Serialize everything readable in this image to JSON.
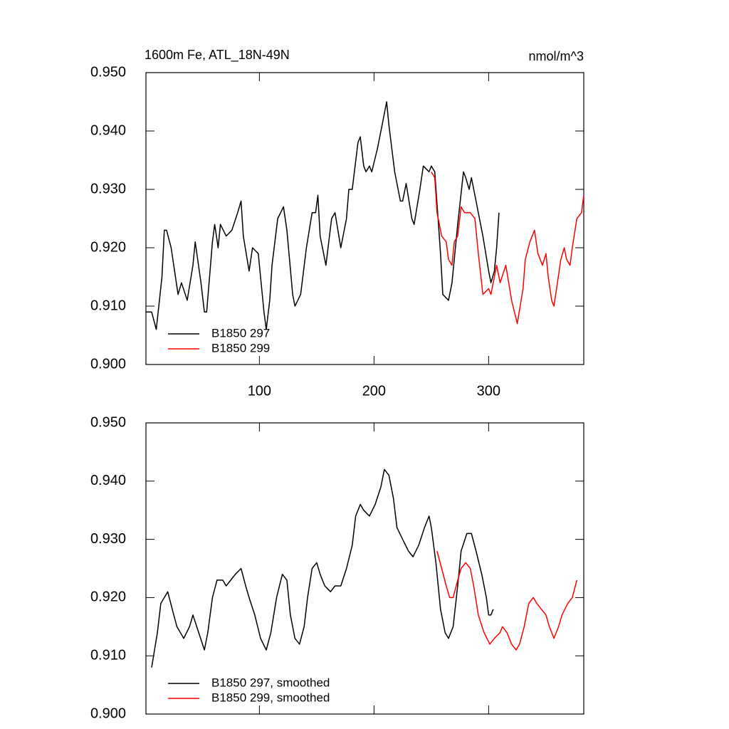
{
  "chart_data": [
    {
      "type": "line",
      "title": "1600m Fe, ATL_18N-49N",
      "units": "nmol/m^3",
      "xlim": [
        1,
        383
      ],
      "xticks": [
        100,
        200,
        300
      ],
      "show_xtick_labels": true,
      "ylim": [
        0.9,
        0.95
      ],
      "yticks": [
        {
          "value": 0.9,
          "label": "0.900"
        },
        {
          "value": 0.91,
          "label": "0.910"
        },
        {
          "value": 0.92,
          "label": "0.920"
        },
        {
          "value": 0.93,
          "label": "0.930"
        },
        {
          "value": 0.94,
          "label": "0.940"
        },
        {
          "value": 0.95,
          "label": "0.950"
        }
      ],
      "legend": "lower left",
      "series": [
        {
          "name": "B1850 297",
          "color": "#000000",
          "x": [
            1,
            6,
            10,
            15,
            17,
            19,
            23,
            29,
            32,
            37,
            42,
            44,
            49,
            52,
            54,
            59,
            61,
            64,
            66,
            71,
            76,
            81,
            84,
            86,
            91,
            94,
            99,
            104,
            106,
            109,
            111,
            116,
            121,
            124,
            129,
            131,
            136,
            141,
            146,
            149,
            151,
            153,
            158,
            163,
            166,
            171,
            176,
            178,
            181,
            186,
            188,
            191,
            193,
            196,
            198,
            203,
            208,
            211,
            213,
            218,
            223,
            225,
            228,
            233,
            235,
            240,
            243,
            248,
            250,
            253,
            258,
            260,
            265,
            268,
            273,
            278,
            280,
            283,
            285,
            290,
            295,
            300,
            302,
            305,
            307,
            309
          ],
          "values": [
            0.909,
            0.909,
            0.906,
            0.915,
            0.923,
            0.923,
            0.92,
            0.912,
            0.914,
            0.911,
            0.917,
            0.921,
            0.914,
            0.909,
            0.909,
            0.921,
            0.924,
            0.92,
            0.924,
            0.922,
            0.923,
            0.926,
            0.928,
            0.922,
            0.916,
            0.92,
            0.919,
            0.909,
            0.906,
            0.911,
            0.917,
            0.925,
            0.927,
            0.923,
            0.912,
            0.91,
            0.912,
            0.92,
            0.926,
            0.926,
            0.929,
            0.922,
            0.917,
            0.925,
            0.926,
            0.92,
            0.925,
            0.93,
            0.93,
            0.938,
            0.939,
            0.934,
            0.933,
            0.934,
            0.933,
            0.937,
            0.942,
            0.945,
            0.941,
            0.933,
            0.928,
            0.928,
            0.931,
            0.925,
            0.924,
            0.93,
            0.934,
            0.933,
            0.934,
            0.933,
            0.919,
            0.912,
            0.911,
            0.914,
            0.924,
            0.933,
            0.932,
            0.93,
            0.932,
            0.927,
            0.922,
            0.916,
            0.914,
            0.916,
            0.92,
            0.926
          ]
        },
        {
          "name": "B1850 299",
          "color": "#ff0000",
          "x": [
            250,
            253,
            255,
            259,
            263,
            265,
            268,
            270,
            273,
            276,
            279,
            284,
            288,
            291,
            295,
            300,
            302,
            307,
            310,
            315,
            320,
            325,
            330,
            332,
            336,
            340,
            343,
            347,
            350,
            352,
            355,
            357,
            360,
            363,
            366,
            368,
            371,
            373,
            377,
            381,
            383
          ],
          "values": [
            0.933,
            0.932,
            0.926,
            0.922,
            0.921,
            0.918,
            0.917,
            0.921,
            0.922,
            0.927,
            0.926,
            0.926,
            0.925,
            0.919,
            0.912,
            0.913,
            0.912,
            0.917,
            0.914,
            0.917,
            0.911,
            0.907,
            0.913,
            0.918,
            0.921,
            0.923,
            0.919,
            0.917,
            0.919,
            0.915,
            0.911,
            0.91,
            0.914,
            0.918,
            0.92,
            0.918,
            0.917,
            0.92,
            0.925,
            0.926,
            0.929
          ]
        }
      ]
    },
    {
      "type": "line",
      "xlim": [
        1,
        383
      ],
      "xticks": [
        100,
        200,
        300
      ],
      "show_xtick_labels": false,
      "ylim": [
        0.9,
        0.95
      ],
      "yticks": [
        {
          "value": 0.9,
          "label": "0.900"
        },
        {
          "value": 0.91,
          "label": "0.910"
        },
        {
          "value": 0.92,
          "label": "0.920"
        },
        {
          "value": 0.93,
          "label": "0.930"
        },
        {
          "value": 0.94,
          "label": "0.940"
        },
        {
          "value": 0.95,
          "label": "0.950"
        }
      ],
      "legend": "lower left",
      "series": [
        {
          "name": "B1850 297, smoothed",
          "color": "#000000",
          "x": [
            6,
            11,
            14,
            20,
            24,
            28,
            34,
            39,
            42,
            47,
            52,
            55,
            59,
            63,
            68,
            71,
            75,
            79,
            84,
            88,
            91,
            96,
            101,
            106,
            110,
            115,
            120,
            124,
            127,
            131,
            135,
            139,
            142,
            146,
            150,
            153,
            157,
            162,
            166,
            171,
            176,
            181,
            184,
            188,
            191,
            196,
            201,
            206,
            209,
            213,
            217,
            220,
            225,
            230,
            234,
            239,
            244,
            248,
            250,
            254,
            258,
            262,
            265,
            269,
            273,
            276,
            281,
            285,
            289,
            294,
            298,
            300,
            302,
            304
          ],
          "values": [
            0.908,
            0.914,
            0.919,
            0.921,
            0.918,
            0.915,
            0.913,
            0.915,
            0.917,
            0.914,
            0.911,
            0.914,
            0.92,
            0.923,
            0.923,
            0.922,
            0.923,
            0.924,
            0.925,
            0.922,
            0.92,
            0.917,
            0.913,
            0.911,
            0.914,
            0.92,
            0.924,
            0.923,
            0.917,
            0.913,
            0.912,
            0.915,
            0.92,
            0.925,
            0.926,
            0.924,
            0.922,
            0.921,
            0.922,
            0.922,
            0.925,
            0.929,
            0.934,
            0.936,
            0.935,
            0.934,
            0.936,
            0.939,
            0.942,
            0.941,
            0.937,
            0.932,
            0.93,
            0.928,
            0.927,
            0.929,
            0.932,
            0.934,
            0.932,
            0.926,
            0.918,
            0.914,
            0.913,
            0.915,
            0.922,
            0.928,
            0.931,
            0.931,
            0.928,
            0.924,
            0.92,
            0.917,
            0.917,
            0.918
          ]
        },
        {
          "name": "B1850 299, smoothed",
          "color": "#ff0000",
          "x": [
            255,
            259,
            263,
            266,
            269,
            273,
            276,
            280,
            284,
            287,
            291,
            296,
            301,
            305,
            310,
            312,
            316,
            320,
            324,
            327,
            331,
            335,
            339,
            342,
            346,
            350,
            353,
            357,
            361,
            364,
            369,
            373,
            377
          ],
          "values": [
            0.928,
            0.925,
            0.922,
            0.92,
            0.92,
            0.923,
            0.925,
            0.926,
            0.925,
            0.922,
            0.917,
            0.914,
            0.912,
            0.913,
            0.914,
            0.915,
            0.914,
            0.912,
            0.911,
            0.912,
            0.915,
            0.919,
            0.92,
            0.919,
            0.918,
            0.917,
            0.915,
            0.913,
            0.915,
            0.917,
            0.919,
            0.92,
            0.923
          ]
        }
      ]
    }
  ]
}
